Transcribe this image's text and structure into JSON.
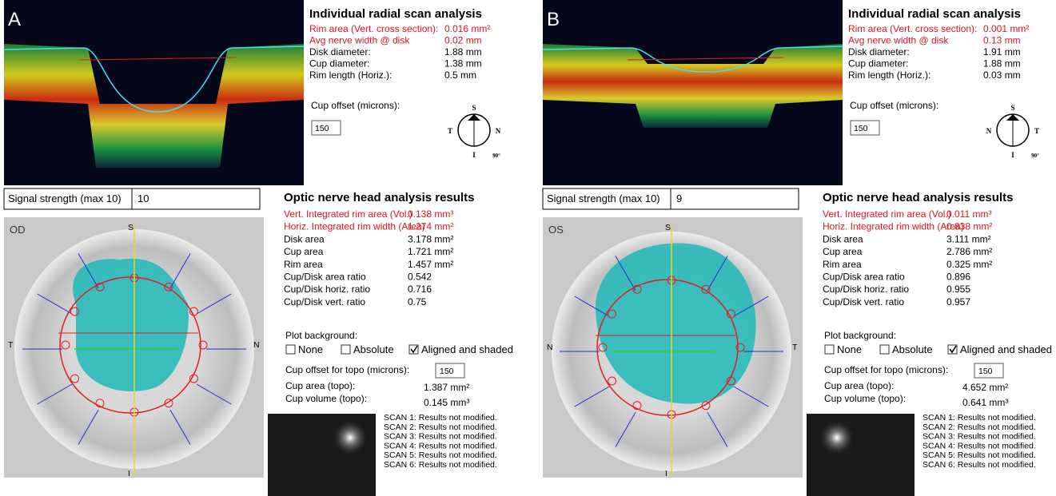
{
  "panels": [
    {
      "label": "A",
      "radial_scan": {
        "title": "Individual radial scan analysis",
        "rows": [
          [
            "Rim area (Vert. cross section):",
            "0.016 mm²"
          ],
          [
            "Avg nerve width @ disk",
            "0.02 mm"
          ],
          [
            "Disk diameter:",
            "1.88 mm"
          ],
          [
            "Cup diameter:",
            "1.38 mm"
          ],
          [
            "Rim length (Horiz.):",
            "0.5 mm"
          ]
        ],
        "cup_offset_label": "Cup offset (microns):",
        "cup_offset_value": "150",
        "compass": {
          "top": "S",
          "left": "T",
          "right": "N",
          "bottom": "I",
          "angle": "90°"
        }
      },
      "signal": {
        "label": "Signal strength (max 10)",
        "value": "10"
      },
      "onh": {
        "title": "Optic nerve head analysis results",
        "rows": [
          [
            "Vert. Integrated rim area (Vol.)",
            "0.138 mm³"
          ],
          [
            "Horiz. Integrated rim width (Area)",
            "1.274 mm²"
          ],
          [
            "Disk area",
            "3.178 mm²"
          ],
          [
            "Cup area",
            "1.721 mm²"
          ],
          [
            "Rim area",
            "1.457 mm²"
          ],
          [
            "Cup/Disk area ratio",
            "0.542"
          ],
          [
            "Cup/Disk horiz. ratio",
            "0.716"
          ],
          [
            "Cup/Disk vert. ratio",
            "0.75"
          ]
        ],
        "plot_background_label": "Plot background:",
        "options": [
          "None",
          "Absolute",
          "Aligned and shaded"
        ],
        "checked": 2,
        "cup_offset_topo_label": "Cup offset for topo (microns):",
        "cup_offset_topo_value": "150",
        "cup_area_label": "Cup area (topo):",
        "cup_area_value": "1.387 mm²",
        "cup_volume_label": "Cup volume (topo):",
        "cup_volume_value": "0.145 mm³"
      },
      "fundus": {
        "eye": "OD",
        "top": "S",
        "left": "T",
        "right": "N",
        "bottom": "I"
      },
      "scans": [
        "SCAN 1: Results not modified.",
        "SCAN 2: Results not modified.",
        "SCAN 3: Results not modified.",
        "SCAN 4: Results not modified.",
        "SCAN 5: Results not modified.",
        "SCAN 6: Results not modified."
      ]
    },
    {
      "label": "B",
      "radial_scan": {
        "title": "Individual radial scan analysis",
        "rows": [
          [
            "Rim area (Vert. cross section):",
            "0.001 mm²"
          ],
          [
            "Avg nerve width @ disk",
            "0.13 mm"
          ],
          [
            "Disk diameter:",
            "1.91 mm"
          ],
          [
            "Cup diameter:",
            "1.88 mm"
          ],
          [
            "Rim length (Horiz.):",
            "0.03 mm"
          ]
        ],
        "cup_offset_label": "Cup offset (microns):",
        "cup_offset_value": "150",
        "compass": {
          "top": "S",
          "left": "N",
          "right": "T",
          "bottom": "I",
          "angle": "90°"
        }
      },
      "signal": {
        "label": "Signal strength (max 10)",
        "value": "9"
      },
      "onh": {
        "title": "Optic nerve head analysis results",
        "rows": [
          [
            "Vert. Integrated rim area (Vol.)",
            "0.011 mm³"
          ],
          [
            "Horiz. Integrated rim width (Area)",
            "0.838 mm²"
          ],
          [
            "Disk area",
            "3.111 mm²"
          ],
          [
            "Cup area",
            "2.786 mm²"
          ],
          [
            "Rim area",
            "0.325 mm²"
          ],
          [
            "Cup/Disk area ratio",
            "0.896"
          ],
          [
            "Cup/Disk horiz. ratio",
            "0.955"
          ],
          [
            "Cup/Disk vert. ratio",
            "0.957"
          ]
        ],
        "plot_background_label": "Plot background:",
        "options": [
          "None",
          "Absolute",
          "Aligned and shaded"
        ],
        "checked": 2,
        "cup_offset_topo_label": "Cup offset for topo (microns):",
        "cup_offset_topo_value": "150",
        "cup_area_label": "Cup area (topo):",
        "cup_area_value": "4.652 mm²",
        "cup_volume_label": "Cup volume (topo):",
        "cup_volume_value": "0.641 mm³"
      },
      "fundus": {
        "eye": "OS",
        "top": "S",
        "left": "N",
        "right": "T",
        "bottom": "I"
      },
      "scans": [
        "SCAN 1: Results not modified.",
        "SCAN 2: Results not modified.",
        "SCAN 3: Results not modified.",
        "SCAN 4: Results not modified.",
        "SCAN 5: Results not modified.",
        "SCAN 6: Results not modified."
      ]
    }
  ]
}
